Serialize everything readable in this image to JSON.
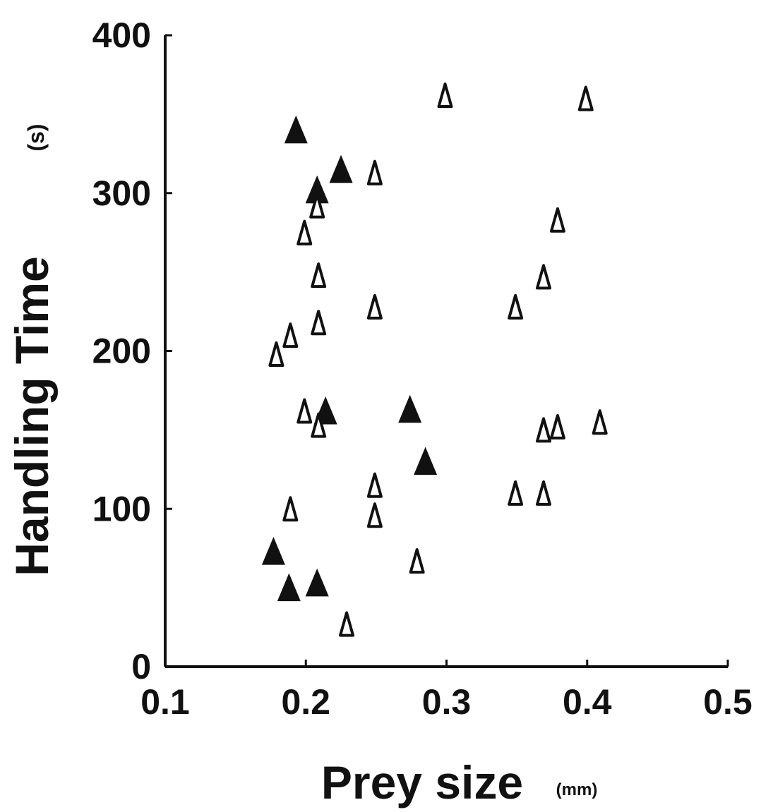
{
  "chart_data": {
    "type": "scatter",
    "xlabel": "Prey size",
    "xunit": "(mm)",
    "ylabel": "Handling Time",
    "yunit": "(s)",
    "xlim": [
      0.1,
      0.5
    ],
    "ylim": [
      0,
      400
    ],
    "x_ticks": [
      "0.1",
      "0.2",
      "0.3",
      "0.4",
      "0.5"
    ],
    "y_ticks": [
      "0",
      "100",
      "200",
      "300",
      "400"
    ],
    "grid": false,
    "legend": "none",
    "colors": {
      "axis": "#111111",
      "marker": "#111111",
      "background": "#ffffff"
    },
    "series": [
      {
        "marker": "filled-triangle",
        "points": [
          [
            0.193,
            340
          ],
          [
            0.225,
            315
          ],
          [
            0.208,
            302
          ],
          [
            0.214,
            162
          ],
          [
            0.274,
            163
          ],
          [
            0.285,
            130
          ],
          [
            0.177,
            73
          ],
          [
            0.188,
            50
          ],
          [
            0.208,
            53
          ]
        ]
      },
      {
        "marker": "open-triangle",
        "points": [
          [
            0.299,
            362
          ],
          [
            0.399,
            360
          ],
          [
            0.249,
            313
          ],
          [
            0.208,
            292
          ],
          [
            0.199,
            275
          ],
          [
            0.379,
            283
          ],
          [
            0.209,
            248
          ],
          [
            0.369,
            247
          ],
          [
            0.249,
            228
          ],
          [
            0.209,
            218
          ],
          [
            0.349,
            228
          ],
          [
            0.189,
            210
          ],
          [
            0.179,
            198
          ],
          [
            0.199,
            162
          ],
          [
            0.209,
            153
          ],
          [
            0.369,
            150
          ],
          [
            0.379,
            152
          ],
          [
            0.409,
            155
          ],
          [
            0.249,
            115
          ],
          [
            0.349,
            110
          ],
          [
            0.369,
            110
          ],
          [
            0.189,
            100
          ],
          [
            0.249,
            96
          ],
          [
            0.279,
            67
          ],
          [
            0.229,
            27
          ]
        ]
      }
    ]
  }
}
